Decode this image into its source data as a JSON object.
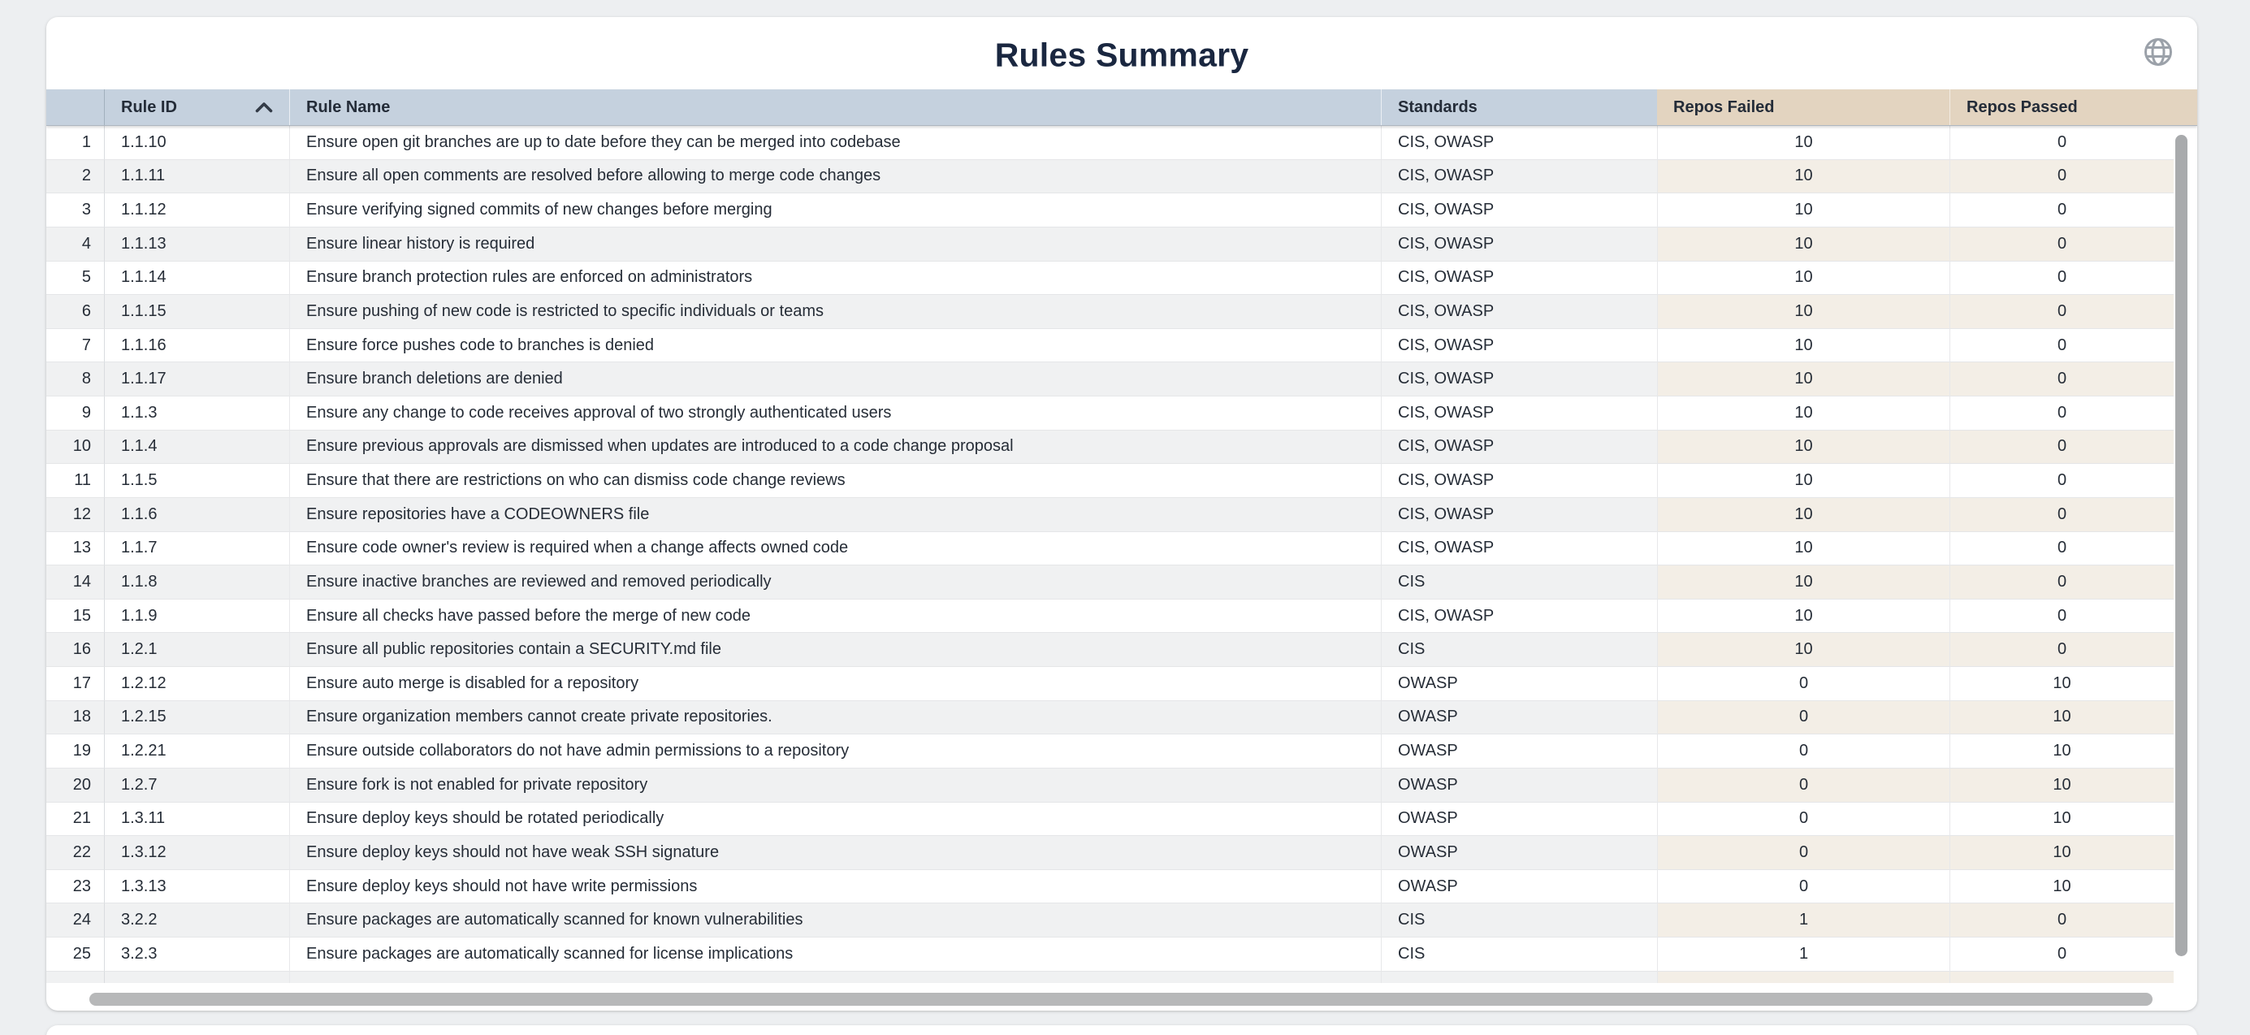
{
  "page": {
    "title": "Rules Summary"
  },
  "icons": {
    "top_right": "globe-icon",
    "rule_id_sort": "chevron-up-icon"
  },
  "theme": {
    "header-blue": "#c5d1de",
    "header-tan": "#e3d4c0",
    "stripe-gray": "#f0f1f2",
    "stripe-tan": "#f3eee6",
    "title-color": "#1a2740",
    "text-color": "#262d37",
    "page-bg": "#edeff1"
  },
  "table": {
    "columns": [
      {
        "key": "index",
        "label": ""
      },
      {
        "key": "rule_id",
        "label": "Rule ID",
        "sorted": "ascending"
      },
      {
        "key": "rule_name",
        "label": "Rule Name"
      },
      {
        "key": "standards",
        "label": "Standards"
      },
      {
        "key": "repos_failed",
        "label": "Repos Failed"
      },
      {
        "key": "repos_passed",
        "label": "Repos Passed"
      }
    ],
    "rows": [
      {
        "num": "1",
        "id": "1.1.10",
        "name": "Ensure open git branches are up to date before they can be merged into codebase",
        "standards": "CIS, OWASP",
        "failed": "10",
        "passed": "0"
      },
      {
        "num": "2",
        "id": "1.1.11",
        "name": "Ensure all open comments are resolved before allowing to merge code changes",
        "standards": "CIS, OWASP",
        "failed": "10",
        "passed": "0"
      },
      {
        "num": "3",
        "id": "1.1.12",
        "name": "Ensure verifying signed commits of new changes before merging",
        "standards": "CIS, OWASP",
        "failed": "10",
        "passed": "0"
      },
      {
        "num": "4",
        "id": "1.1.13",
        "name": "Ensure linear history is required",
        "standards": "CIS, OWASP",
        "failed": "10",
        "passed": "0"
      },
      {
        "num": "5",
        "id": "1.1.14",
        "name": "Ensure branch protection rules are enforced on administrators",
        "standards": "CIS, OWASP",
        "failed": "10",
        "passed": "0"
      },
      {
        "num": "6",
        "id": "1.1.15",
        "name": "Ensure pushing of new code is restricted to specific individuals or teams",
        "standards": "CIS, OWASP",
        "failed": "10",
        "passed": "0"
      },
      {
        "num": "7",
        "id": "1.1.16",
        "name": "Ensure force pushes code to branches is denied",
        "standards": "CIS, OWASP",
        "failed": "10",
        "passed": "0"
      },
      {
        "num": "8",
        "id": "1.1.17",
        "name": "Ensure branch deletions are denied",
        "standards": "CIS, OWASP",
        "failed": "10",
        "passed": "0"
      },
      {
        "num": "9",
        "id": "1.1.3",
        "name": "Ensure any change to code receives approval of two strongly authenticated users",
        "standards": "CIS, OWASP",
        "failed": "10",
        "passed": "0"
      },
      {
        "num": "10",
        "id": "1.1.4",
        "name": "Ensure previous approvals are dismissed when updates are introduced to a code change proposal",
        "standards": "CIS, OWASP",
        "failed": "10",
        "passed": "0"
      },
      {
        "num": "11",
        "id": "1.1.5",
        "name": "Ensure that there are restrictions on who can dismiss code change reviews",
        "standards": "CIS, OWASP",
        "failed": "10",
        "passed": "0"
      },
      {
        "num": "12",
        "id": "1.1.6",
        "name": "Ensure repositories have a CODEOWNERS file",
        "standards": "CIS, OWASP",
        "failed": "10",
        "passed": "0"
      },
      {
        "num": "13",
        "id": "1.1.7",
        "name": "Ensure code owner's review is required when a change affects owned code",
        "standards": "CIS, OWASP",
        "failed": "10",
        "passed": "0"
      },
      {
        "num": "14",
        "id": "1.1.8",
        "name": "Ensure inactive branches are reviewed and removed periodically",
        "standards": "CIS",
        "failed": "10",
        "passed": "0"
      },
      {
        "num": "15",
        "id": "1.1.9",
        "name": "Ensure all checks have passed before the merge of new code",
        "standards": "CIS, OWASP",
        "failed": "10",
        "passed": "0"
      },
      {
        "num": "16",
        "id": "1.2.1",
        "name": "Ensure all public repositories contain a SECURITY.md file",
        "standards": "CIS",
        "failed": "10",
        "passed": "0"
      },
      {
        "num": "17",
        "id": "1.2.12",
        "name": "Ensure auto merge is disabled for a repository",
        "standards": "OWASP",
        "failed": "0",
        "passed": "10"
      },
      {
        "num": "18",
        "id": "1.2.15",
        "name": "Ensure organization members cannot create private repositories.",
        "standards": "OWASP",
        "failed": "0",
        "passed": "10"
      },
      {
        "num": "19",
        "id": "1.2.21",
        "name": "Ensure outside collaborators do not have admin permissions to a repository",
        "standards": "OWASP",
        "failed": "0",
        "passed": "10"
      },
      {
        "num": "20",
        "id": "1.2.7",
        "name": "Ensure fork is not enabled for private repository",
        "standards": "OWASP",
        "failed": "0",
        "passed": "10"
      },
      {
        "num": "21",
        "id": "1.3.11",
        "name": "Ensure deploy keys should be rotated periodically",
        "standards": "OWASP",
        "failed": "0",
        "passed": "10"
      },
      {
        "num": "22",
        "id": "1.3.12",
        "name": "Ensure deploy keys should not have weak SSH signature",
        "standards": "OWASP",
        "failed": "0",
        "passed": "10"
      },
      {
        "num": "23",
        "id": "1.3.13",
        "name": "Ensure deploy keys should not have write permissions",
        "standards": "OWASP",
        "failed": "0",
        "passed": "10"
      },
      {
        "num": "24",
        "id": "3.2.2",
        "name": "Ensure packages are automatically scanned for known vulnerabilities",
        "standards": "CIS",
        "failed": "1",
        "passed": "0"
      },
      {
        "num": "25",
        "id": "3.2.3",
        "name": "Ensure packages are automatically scanned for license implications",
        "standards": "CIS",
        "failed": "1",
        "passed": "0"
      }
    ]
  }
}
